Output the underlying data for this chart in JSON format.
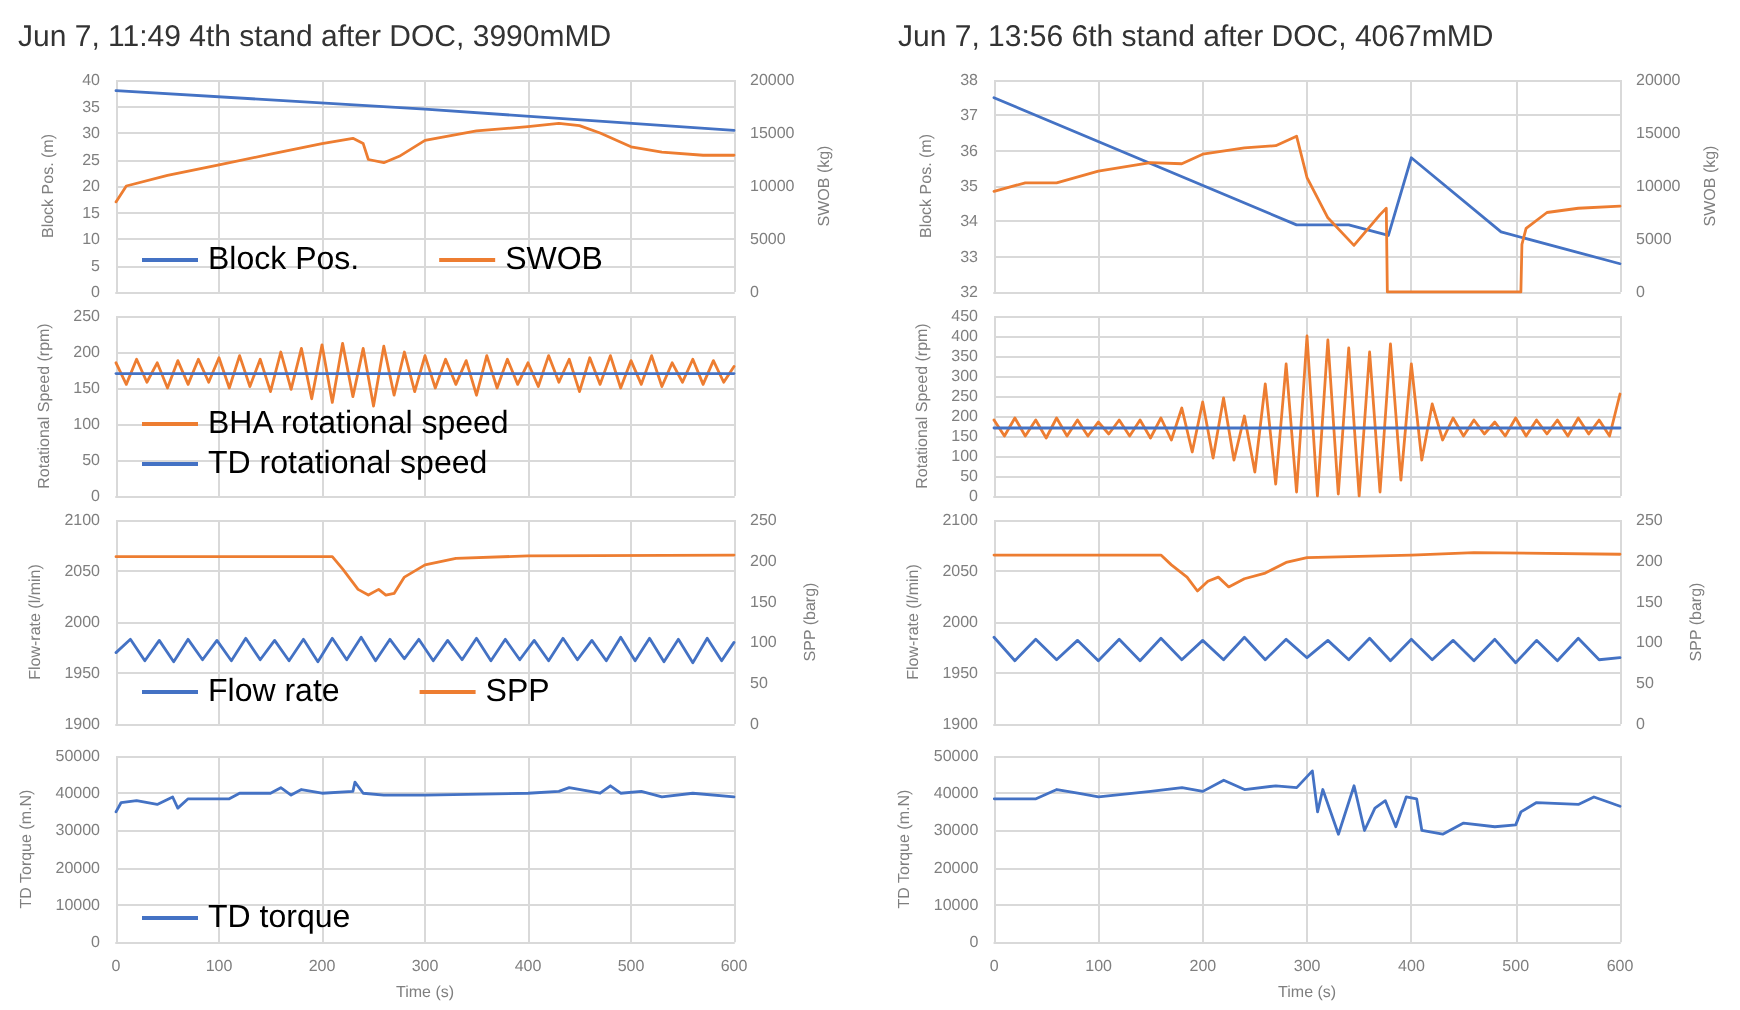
{
  "chart_data": [
    {
      "type": "line",
      "title": "Jun 7, 11:49 4th stand after DOC, 3990mMD",
      "ylabel": "Block Pos. (m)",
      "y2label": "SWOB (kg)",
      "xlim": [
        0,
        600
      ],
      "xticks": [
        0,
        100,
        200,
        300,
        400,
        500,
        600
      ],
      "ylim": [
        0,
        40
      ],
      "yticks": [
        0,
        5,
        10,
        15,
        20,
        25,
        30,
        35,
        40
      ],
      "y2lim": [
        0,
        20000
      ],
      "y2ticks": [
        0,
        5000,
        10000,
        15000,
        20000
      ],
      "grid": true,
      "legend": "bottom left",
      "tick_labels": "y",
      "series": [
        {
          "name": "Block Pos.",
          "color": "#4472c4",
          "x": [
            0,
            300,
            600
          ],
          "values": [
            38,
            34.5,
            30.5
          ]
        },
        {
          "name": "SWOB",
          "color": "#ed7d31",
          "axis": "y2",
          "x": [
            0,
            10,
            50,
            100,
            150,
            200,
            230,
            240,
            245,
            260,
            275,
            300,
            350,
            400,
            430,
            450,
            470,
            500,
            530,
            570,
            600
          ],
          "values": [
            8500,
            10000,
            11000,
            12000,
            13000,
            14000,
            14500,
            14000,
            12500,
            12200,
            12800,
            14300,
            15200,
            15600,
            15900,
            15700,
            15000,
            13700,
            13200,
            12900,
            12900
          ]
        }
      ]
    },
    {
      "type": "line",
      "title": "Jun 7, 13:56 6th stand after DOC, 4067mMD",
      "ylabel": "Block Pos. (m)",
      "y2label": "SWOB (kg)",
      "xlim": [
        0,
        600
      ],
      "xticks": [
        0,
        100,
        200,
        300,
        400,
        500,
        600
      ],
      "ylim": [
        32,
        38
      ],
      "yticks": [
        32,
        33,
        34,
        35,
        36,
        37,
        38
      ],
      "y2lim": [
        0,
        20000
      ],
      "y2ticks": [
        0,
        5000,
        10000,
        15000,
        20000
      ],
      "grid": true,
      "tick_labels": "y",
      "series": [
        {
          "color": "#4472c4",
          "x": [
            0,
            290,
            340,
            378,
            400,
            486,
            600
          ],
          "values": [
            37.5,
            33.9,
            33.9,
            33.6,
            35.8,
            33.7,
            32.8
          ]
        },
        {
          "color": "#ed7d31",
          "axis": "y2",
          "x": [
            0,
            30,
            60,
            100,
            150,
            180,
            200,
            240,
            270,
            290,
            300,
            320,
            345,
            370,
            376,
            377,
            505,
            506,
            510,
            530,
            560,
            600
          ],
          "values": [
            9500,
            10300,
            10300,
            11400,
            12200,
            12100,
            13000,
            13600,
            13800,
            14700,
            10800,
            7000,
            4400,
            7300,
            7900,
            0,
            0,
            4500,
            6000,
            7500,
            7900,
            8100
          ]
        }
      ]
    },
    {
      "type": "line",
      "ylabel": "Rotational Speed (rpm)",
      "xlim": [
        0,
        600
      ],
      "xticks": [
        0,
        100,
        200,
        300,
        400,
        500,
        600
      ],
      "ylim": [
        0,
        250
      ],
      "yticks": [
        0,
        50,
        100,
        150,
        200,
        250
      ],
      "grid": true,
      "legend": "bottom left",
      "tick_labels": "y",
      "series": [
        {
          "name": "BHA rotational speed",
          "color": "#ed7d31",
          "x": [
            0,
            10,
            20,
            30,
            40,
            50,
            60,
            70,
            80,
            90,
            100,
            110,
            120,
            130,
            140,
            150,
            160,
            170,
            180,
            190,
            200,
            210,
            220,
            230,
            240,
            250,
            260,
            270,
            280,
            290,
            300,
            310,
            320,
            330,
            340,
            350,
            360,
            370,
            380,
            390,
            400,
            410,
            420,
            430,
            440,
            450,
            460,
            470,
            480,
            490,
            500,
            510,
            520,
            530,
            540,
            550,
            560,
            570,
            580,
            590,
            600
          ],
          "values": [
            185,
            155,
            190,
            158,
            185,
            150,
            188,
            155,
            190,
            158,
            192,
            150,
            195,
            152,
            190,
            145,
            200,
            148,
            205,
            135,
            210,
            130,
            212,
            138,
            205,
            125,
            208,
            140,
            200,
            145,
            195,
            150,
            190,
            155,
            188,
            140,
            195,
            150,
            190,
            155,
            185,
            152,
            195,
            158,
            190,
            145,
            192,
            155,
            195,
            150,
            188,
            155,
            195,
            152,
            185,
            158,
            190,
            155,
            188,
            158,
            180
          ]
        },
        {
          "name": "TD rotational speed",
          "color": "#4472c4",
          "x": [
            0,
            600
          ],
          "values": [
            170,
            170
          ]
        }
      ]
    },
    {
      "type": "line",
      "ylabel": "Rotational Speed (rpm)",
      "xlim": [
        0,
        600
      ],
      "xticks": [
        0,
        100,
        200,
        300,
        400,
        500,
        600
      ],
      "ylim": [
        0,
        450
      ],
      "yticks": [
        0,
        50,
        100,
        150,
        200,
        250,
        300,
        350,
        400,
        450
      ],
      "grid": true,
      "tick_labels": "y",
      "series": [
        {
          "color": "#ed7d31",
          "x": [
            0,
            10,
            20,
            30,
            40,
            50,
            60,
            70,
            80,
            90,
            100,
            110,
            120,
            130,
            140,
            150,
            160,
            170,
            180,
            190,
            200,
            210,
            220,
            230,
            240,
            250,
            260,
            270,
            280,
            290,
            300,
            310,
            320,
            330,
            340,
            350,
            360,
            370,
            380,
            390,
            400,
            410,
            420,
            430,
            440,
            450,
            460,
            470,
            480,
            490,
            500,
            510,
            520,
            530,
            540,
            550,
            560,
            570,
            580,
            590,
            600
          ],
          "values": [
            190,
            150,
            195,
            150,
            190,
            145,
            195,
            150,
            190,
            150,
            185,
            155,
            190,
            150,
            190,
            145,
            195,
            140,
            220,
            110,
            235,
            95,
            245,
            90,
            200,
            60,
            280,
            30,
            330,
            10,
            400,
            0,
            390,
            5,
            370,
            0,
            360,
            10,
            380,
            40,
            330,
            90,
            230,
            140,
            195,
            150,
            190,
            155,
            185,
            150,
            195,
            150,
            190,
            155,
            190,
            150,
            195,
            155,
            190,
            150,
            255
          ]
        },
        {
          "color": "#4472c4",
          "x": [
            0,
            600
          ],
          "values": [
            170,
            170
          ]
        }
      ]
    },
    {
      "type": "line",
      "ylabel": "Flow-rate (l/min)",
      "y2label": "SPP (barg)",
      "xlim": [
        0,
        600
      ],
      "xticks": [
        0,
        100,
        200,
        300,
        400,
        500,
        600
      ],
      "ylim": [
        1900,
        2100
      ],
      "yticks": [
        1900,
        1950,
        2000,
        2050,
        2100
      ],
      "y2lim": [
        0,
        250
      ],
      "y2ticks": [
        0,
        50,
        100,
        150,
        200,
        250
      ],
      "grid": true,
      "legend": "bottom left",
      "tick_labels": "y",
      "series": [
        {
          "name": "Flow rate",
          "color": "#4472c4",
          "x": [
            0,
            14,
            28,
            42,
            56,
            70,
            84,
            98,
            112,
            126,
            140,
            154,
            168,
            182,
            196,
            210,
            224,
            238,
            252,
            266,
            280,
            294,
            308,
            322,
            336,
            350,
            364,
            378,
            392,
            406,
            420,
            434,
            448,
            462,
            476,
            490,
            504,
            518,
            532,
            546,
            560,
            574,
            588,
            600
          ],
          "values": [
            1970,
            1983,
            1962,
            1982,
            1961,
            1983,
            1963,
            1982,
            1962,
            1984,
            1963,
            1982,
            1962,
            1983,
            1961,
            1984,
            1963,
            1985,
            1962,
            1983,
            1964,
            1983,
            1962,
            1982,
            1963,
            1984,
            1962,
            1983,
            1963,
            1982,
            1962,
            1984,
            1963,
            1982,
            1962,
            1985,
            1962,
            1984,
            1961,
            1983,
            1960,
            1984,
            1962,
            1980
          ]
        },
        {
          "name": "SPP",
          "color": "#ed7d31",
          "axis": "y2",
          "x": [
            0,
            210,
            220,
            235,
            245,
            255,
            262,
            270,
            280,
            300,
            330,
            400,
            600
          ],
          "values": [
            205,
            205,
            190,
            165,
            158,
            165,
            158,
            160,
            180,
            195,
            203,
            206,
            207
          ]
        }
      ]
    },
    {
      "type": "line",
      "ylabel": "Flow-rate (l/min)",
      "y2label": "SPP (barg)",
      "xlim": [
        0,
        600
      ],
      "xticks": [
        0,
        100,
        200,
        300,
        400,
        500,
        600
      ],
      "ylim": [
        1900,
        2100
      ],
      "yticks": [
        1900,
        1950,
        2000,
        2050,
        2100
      ],
      "y2lim": [
        0,
        250
      ],
      "y2ticks": [
        0,
        50,
        100,
        150,
        200,
        250
      ],
      "grid": true,
      "tick_labels": "y",
      "series": [
        {
          "color": "#4472c4",
          "x": [
            0,
            20,
            40,
            60,
            80,
            100,
            120,
            140,
            160,
            180,
            200,
            220,
            240,
            260,
            280,
            300,
            320,
            340,
            360,
            380,
            400,
            420,
            440,
            460,
            480,
            500,
            520,
            540,
            560,
            580,
            600
          ],
          "values": [
            1985,
            1962,
            1983,
            1963,
            1982,
            1962,
            1983,
            1962,
            1984,
            1963,
            1982,
            1963,
            1985,
            1963,
            1983,
            1965,
            1982,
            1963,
            1984,
            1962,
            1983,
            1963,
            1982,
            1962,
            1983,
            1960,
            1982,
            1962,
            1984,
            1963,
            1965
          ]
        },
        {
          "color": "#ed7d31",
          "axis": "y2",
          "x": [
            0,
            160,
            170,
            185,
            195,
            205,
            215,
            225,
            240,
            260,
            280,
            300,
            400,
            460,
            600
          ],
          "values": [
            207,
            207,
            195,
            180,
            163,
            175,
            180,
            168,
            178,
            185,
            198,
            204,
            207,
            210,
            208
          ]
        }
      ]
    },
    {
      "type": "line",
      "ylabel": "TD Torque (m.N)",
      "xlabel": "Time (s)",
      "xlim": [
        0,
        600
      ],
      "xticks": [
        0,
        100,
        200,
        300,
        400,
        500,
        600
      ],
      "ylim": [
        0,
        50000
      ],
      "yticks": [
        0,
        10000,
        20000,
        30000,
        40000,
        50000
      ],
      "grid": true,
      "legend": "bottom left",
      "series": [
        {
          "name": "TD torque",
          "color": "#4472c4",
          "x": [
            0,
            5,
            20,
            40,
            55,
            60,
            70,
            110,
            120,
            150,
            160,
            170,
            180,
            200,
            230,
            232,
            240,
            260,
            300,
            400,
            430,
            440,
            470,
            480,
            490,
            510,
            530,
            560,
            600
          ],
          "values": [
            35000,
            37500,
            38000,
            37000,
            39000,
            36000,
            38500,
            38500,
            40000,
            40000,
            41500,
            39500,
            41000,
            40000,
            40500,
            43000,
            40000,
            39500,
            39500,
            40000,
            40500,
            41500,
            40000,
            42000,
            40000,
            40500,
            39000,
            40000,
            39000
          ]
        }
      ]
    },
    {
      "type": "line",
      "ylabel": "TD Torque (m.N)",
      "xlabel": "Time (s)",
      "xlim": [
        0,
        600
      ],
      "xticks": [
        0,
        100,
        200,
        300,
        400,
        500,
        600
      ],
      "ylim": [
        0,
        50000
      ],
      "yticks": [
        0,
        10000,
        20000,
        30000,
        40000,
        50000
      ],
      "grid": true,
      "series": [
        {
          "color": "#4472c4",
          "x": [
            0,
            40,
            60,
            80,
            100,
            150,
            180,
            200,
            220,
            240,
            270,
            290,
            305,
            310,
            315,
            330,
            345,
            355,
            365,
            375,
            385,
            395,
            405,
            410,
            430,
            450,
            480,
            500,
            505,
            520,
            560,
            575,
            590,
            600
          ],
          "values": [
            38500,
            38500,
            41000,
            40000,
            39000,
            40500,
            41500,
            40500,
            43500,
            41000,
            42000,
            41500,
            46000,
            35000,
            41000,
            29000,
            42000,
            30000,
            36000,
            38000,
            31000,
            39000,
            38500,
            30000,
            29000,
            32000,
            31000,
            31500,
            35000,
            37500,
            37000,
            39000,
            37500,
            36500
          ]
        }
      ]
    }
  ]
}
